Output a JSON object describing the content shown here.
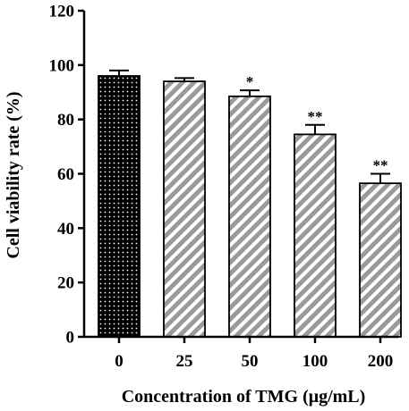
{
  "chart_data": {
    "type": "bar",
    "title": "",
    "xlabel": "Concentration of TMG (μg/mL)",
    "ylabel": "Cell viability rate (%)",
    "categories": [
      "0",
      "25",
      "50",
      "100",
      "200"
    ],
    "values": [
      96,
      94,
      88.5,
      74.5,
      56.5
    ],
    "errors": [
      2,
      1.2,
      2.2,
      3.5,
      3.5
    ],
    "significance": [
      "",
      "",
      "*",
      "**",
      "**"
    ],
    "patterns": [
      "dots",
      "stripes",
      "stripes",
      "stripes",
      "stripes"
    ],
    "ylim": [
      0,
      120
    ],
    "yticks": [
      "0",
      "20",
      "40",
      "60",
      "80",
      "100",
      "120"
    ],
    "grid": false,
    "colors": {
      "control_fill": "#000000",
      "stripe_fill": "#9a9a9a",
      "stripe_bg": "#ffffff",
      "axis": "#000000"
    }
  }
}
